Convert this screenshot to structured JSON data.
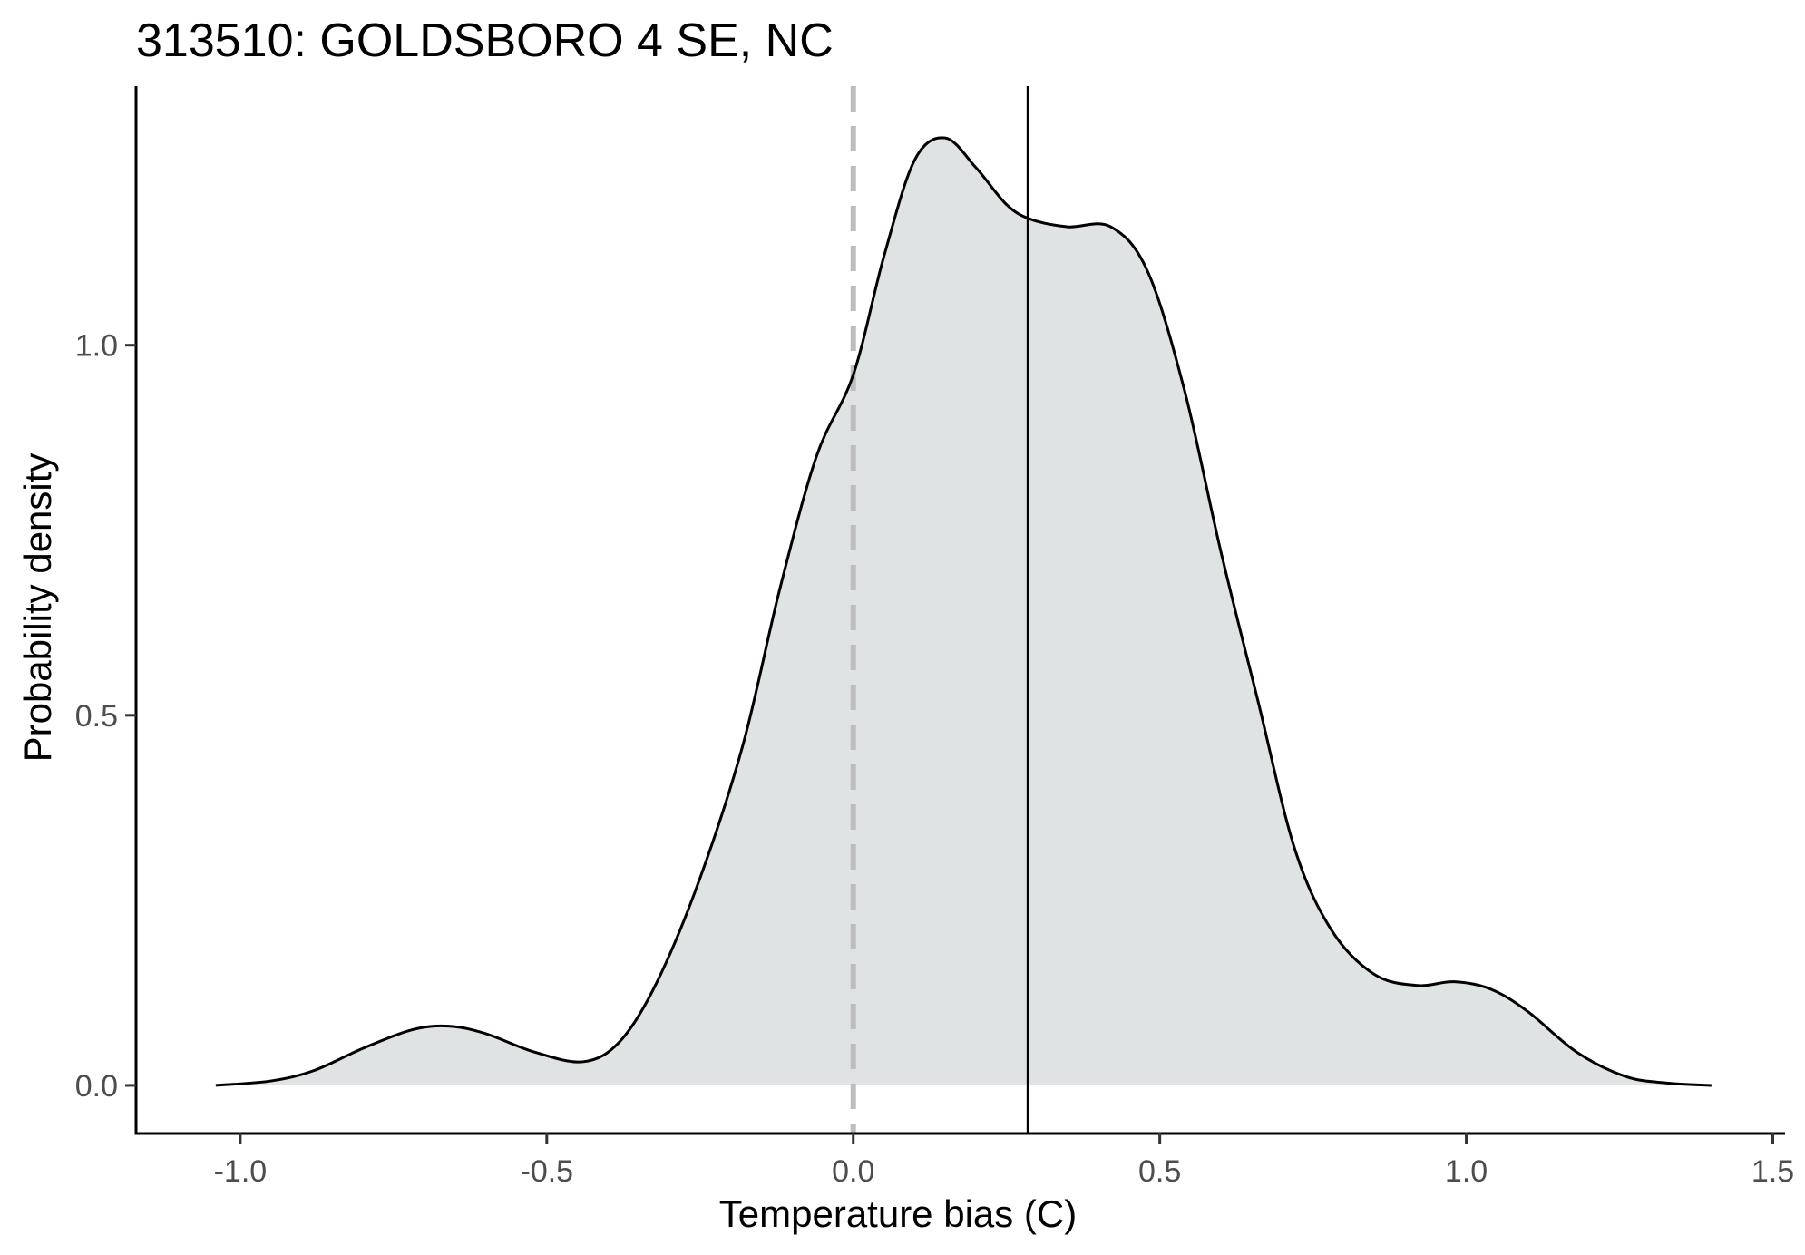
{
  "chart_data": {
    "type": "area",
    "title": "313510: GOLDSBORO 4 SE, NC",
    "xlabel": "Temperature bias (C)",
    "ylabel": "Probability density",
    "xlim": [
      -1.17,
      1.52
    ],
    "ylim": [
      -0.065,
      1.35
    ],
    "x_ticks": [
      -1.0,
      -0.5,
      0.0,
      0.5,
      1.0,
      1.5
    ],
    "x_tick_labels": [
      "-1.0",
      "-0.5",
      "0.0",
      "0.5",
      "1.0",
      "1.5"
    ],
    "y_ticks": [
      0.0,
      0.5,
      1.0
    ],
    "y_tick_labels": [
      "0.0",
      "0.5",
      "1.0"
    ],
    "grid": false,
    "density": {
      "x": [
        -1.04,
        -0.95,
        -0.88,
        -0.8,
        -0.72,
        -0.66,
        -0.6,
        -0.52,
        -0.44,
        -0.38,
        -0.32,
        -0.25,
        -0.18,
        -0.12,
        -0.06,
        0.0,
        0.05,
        0.1,
        0.15,
        0.2,
        0.25,
        0.29,
        0.35,
        0.42,
        0.48,
        0.54,
        0.6,
        0.66,
        0.72,
        0.78,
        0.85,
        0.92,
        0.98,
        1.04,
        1.1,
        1.18,
        1.26,
        1.33,
        1.4
      ],
      "y": [
        0.0,
        0.006,
        0.02,
        0.05,
        0.075,
        0.08,
        0.07,
        0.045,
        0.032,
        0.06,
        0.14,
        0.28,
        0.46,
        0.67,
        0.85,
        0.96,
        1.12,
        1.25,
        1.28,
        1.24,
        1.19,
        1.17,
        1.16,
        1.16,
        1.1,
        0.94,
        0.72,
        0.52,
        0.32,
        0.21,
        0.15,
        0.135,
        0.14,
        0.13,
        0.1,
        0.045,
        0.012,
        0.003,
        0.0
      ]
    },
    "fill_color": "#e0e3e3",
    "line_color": "#000000",
    "reference_lines": [
      {
        "x": 0.0,
        "style": "dashed",
        "color": "#bdbdbd"
      },
      {
        "x": 0.285,
        "style": "solid",
        "color": "#000000"
      }
    ]
  }
}
